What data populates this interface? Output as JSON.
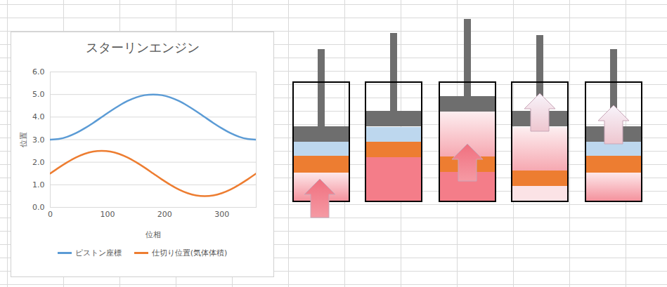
{
  "chart_data": {
    "type": "line",
    "title": "スターリンエンジン",
    "x_label": "位相",
    "y_label": "位置",
    "x": [
      0,
      15,
      30,
      45,
      60,
      75,
      90,
      105,
      120,
      135,
      150,
      165,
      180,
      195,
      210,
      225,
      240,
      255,
      270,
      285,
      300,
      315,
      330,
      345,
      360
    ],
    "series": [
      {
        "name": "ピストン座標",
        "color": "#5b9bd5",
        "values": [
          3,
          3.03,
          3.13,
          3.29,
          3.5,
          3.74,
          4,
          4.26,
          4.5,
          4.71,
          4.87,
          4.97,
          5,
          4.97,
          4.87,
          4.71,
          4.5,
          4.26,
          4,
          3.74,
          3.5,
          3.29,
          3.13,
          3.03,
          3
        ]
      },
      {
        "name": "仕切り位置(気体体積)",
        "color": "#ed7d31",
        "values": [
          1.5,
          1.76,
          2,
          2.21,
          2.37,
          2.47,
          2.5,
          2.47,
          2.37,
          2.21,
          2,
          1.76,
          1.5,
          1.24,
          1,
          0.79,
          0.63,
          0.53,
          0.5,
          0.53,
          0.63,
          0.79,
          1,
          1.24,
          1.5
        ]
      }
    ],
    "xlim": [
      0,
      360
    ],
    "xticks": [
      0,
      100,
      200,
      300
    ],
    "ylim": [
      0,
      6
    ],
    "yticks": [
      0,
      1,
      2,
      3,
      4,
      5,
      6
    ],
    "grid": true,
    "legend": "bottom"
  }
}
